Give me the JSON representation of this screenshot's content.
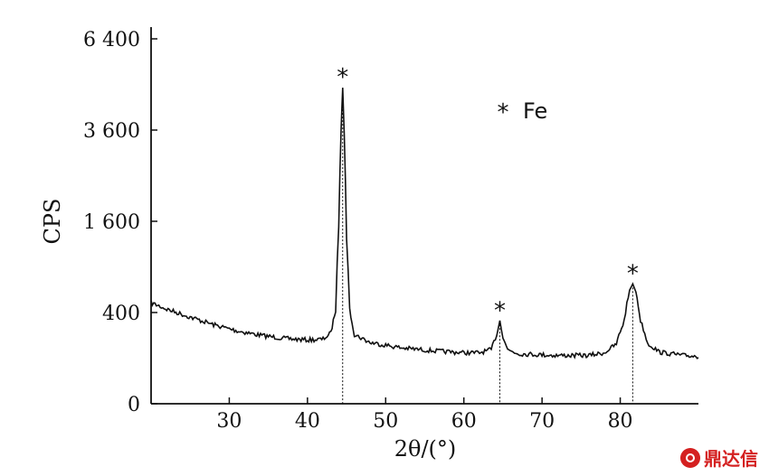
{
  "chart_data": {
    "type": "line",
    "xlabel": "2θ/(°)",
    "ylabel": "CPS",
    "xlim": [
      20,
      90
    ],
    "x_ticks": [
      30,
      40,
      50,
      60,
      70,
      80
    ],
    "y_ticks": [
      "0",
      "400",
      "1 600",
      "3 600",
      "6 400"
    ],
    "y_tick_values": [
      0,
      400,
      1600,
      3600,
      6400
    ],
    "y_scale": "sqrt",
    "ylim": [
      0,
      6400
    ],
    "series": [
      {
        "points": [
          [
            20,
            490
          ],
          [
            22,
            430
          ],
          [
            25,
            360
          ],
          [
            28,
            300
          ],
          [
            31,
            255
          ],
          [
            34,
            225
          ],
          [
            37,
            205
          ],
          [
            40,
            195
          ],
          [
            42,
            200
          ],
          [
            43,
            240
          ],
          [
            43.6,
            420
          ],
          [
            44.0,
            1500
          ],
          [
            44.3,
            3600
          ],
          [
            44.5,
            4800
          ],
          [
            44.7,
            3500
          ],
          [
            45.0,
            1300
          ],
          [
            45.4,
            420
          ],
          [
            46,
            230
          ],
          [
            48,
            180
          ],
          [
            52,
            150
          ],
          [
            56,
            135
          ],
          [
            60,
            125
          ],
          [
            62,
            125
          ],
          [
            63.5,
            140
          ],
          [
            64.2,
            230
          ],
          [
            64.6,
            330
          ],
          [
            65.0,
            220
          ],
          [
            65.6,
            140
          ],
          [
            67,
            120
          ],
          [
            72,
            112
          ],
          [
            76,
            112
          ],
          [
            78,
            125
          ],
          [
            79.5,
            170
          ],
          [
            80.5,
            330
          ],
          [
            81.2,
            620
          ],
          [
            81.6,
            690
          ],
          [
            82.0,
            600
          ],
          [
            82.6,
            330
          ],
          [
            83.5,
            175
          ],
          [
            85,
            128
          ],
          [
            88,
            112
          ],
          [
            90,
            108
          ]
        ]
      }
    ],
    "peaks": [
      {
        "x": 44.5,
        "y": 4800,
        "marker": "*"
      },
      {
        "x": 64.6,
        "y": 330,
        "marker": "*"
      },
      {
        "x": 81.6,
        "y": 690,
        "marker": "*"
      }
    ],
    "legend": {
      "marker": "*",
      "label": "Fe",
      "position": "top-right"
    },
    "grid": false
  },
  "watermark": {
    "text": "鼎达信"
  }
}
